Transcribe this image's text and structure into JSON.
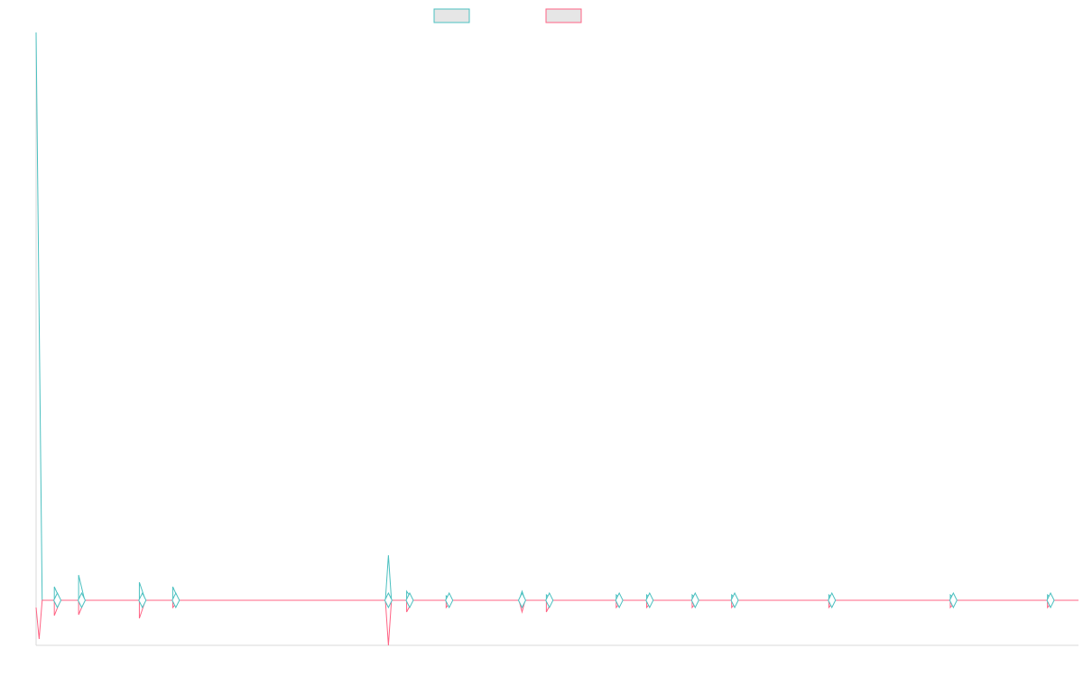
{
  "chart_data": {
    "type": "line",
    "title": "",
    "xlabel": "",
    "ylabel": "",
    "legend_position": "top-center",
    "grid": false,
    "x_range": [
      0,
      171.6
    ],
    "ylim": [
      -50,
      630
    ],
    "series": [
      {
        "color": "#4bc0c0",
        "points": [
          [
            0,
            630
          ],
          [
            1,
            0
          ],
          [
            3,
            0
          ],
          [
            3,
            15
          ],
          [
            4,
            0
          ],
          [
            7,
            0
          ],
          [
            7,
            28
          ],
          [
            8,
            0
          ],
          [
            17,
            0
          ],
          [
            17,
            20
          ],
          [
            18,
            0
          ],
          [
            22.5,
            0
          ],
          [
            22.5,
            15
          ],
          [
            23.5,
            0
          ],
          [
            57.5,
            0
          ],
          [
            58,
            50
          ],
          [
            58.5,
            0
          ],
          [
            61,
            0
          ],
          [
            61,
            10
          ],
          [
            62,
            0
          ],
          [
            67.5,
            0
          ],
          [
            67.5,
            5
          ],
          [
            68.5,
            0
          ],
          [
            79.5,
            0
          ],
          [
            80,
            10
          ],
          [
            80.5,
            0
          ],
          [
            84,
            0
          ],
          [
            84,
            6
          ],
          [
            85,
            0
          ],
          [
            95.5,
            0
          ],
          [
            95.5,
            6
          ],
          [
            96.5,
            0
          ],
          [
            100.5,
            0
          ],
          [
            100.5,
            6
          ],
          [
            101.5,
            0
          ],
          [
            108,
            0
          ],
          [
            108,
            6
          ],
          [
            109,
            0
          ],
          [
            114.5,
            0
          ],
          [
            114.5,
            6
          ],
          [
            115.5,
            0
          ],
          [
            130.5,
            0
          ],
          [
            130.5,
            6
          ],
          [
            131.5,
            0
          ],
          [
            150.5,
            0
          ],
          [
            150.5,
            6
          ],
          [
            151.5,
            0
          ],
          [
            166.5,
            0
          ],
          [
            166.5,
            6
          ],
          [
            167.5,
            0
          ],
          [
            171.6,
            0
          ]
        ]
      },
      {
        "color": "#ff6384",
        "points": [
          [
            0,
            -8
          ],
          [
            0.5,
            -43
          ],
          [
            1,
            0
          ],
          [
            3,
            0
          ],
          [
            3,
            -17
          ],
          [
            4,
            0
          ],
          [
            7,
            0
          ],
          [
            7,
            -16
          ],
          [
            8,
            0
          ],
          [
            17,
            0
          ],
          [
            17,
            -20
          ],
          [
            18,
            0
          ],
          [
            22.5,
            0
          ],
          [
            22.5,
            -8
          ],
          [
            23.5,
            0
          ],
          [
            57.5,
            0
          ],
          [
            58,
            -50
          ],
          [
            58.5,
            0
          ],
          [
            61,
            0
          ],
          [
            61,
            -13
          ],
          [
            62,
            0
          ],
          [
            67.5,
            0
          ],
          [
            67.5,
            -8
          ],
          [
            68.5,
            0
          ],
          [
            79.5,
            0
          ],
          [
            80,
            -13
          ],
          [
            80.5,
            0
          ],
          [
            84,
            0
          ],
          [
            84,
            -13
          ],
          [
            85,
            0
          ],
          [
            95.5,
            0
          ],
          [
            95.5,
            -8
          ],
          [
            96.5,
            0
          ],
          [
            100.5,
            0
          ],
          [
            100.5,
            -8
          ],
          [
            101.5,
            0
          ],
          [
            108,
            0
          ],
          [
            108,
            -8
          ],
          [
            109,
            0
          ],
          [
            114.5,
            0
          ],
          [
            114.5,
            -8
          ],
          [
            115.5,
            0
          ],
          [
            130.5,
            0
          ],
          [
            130.5,
            -8
          ],
          [
            131.5,
            0
          ],
          [
            150.5,
            0
          ],
          [
            150.5,
            -8
          ],
          [
            151.5,
            0
          ],
          [
            166.5,
            0
          ],
          [
            166.5,
            -8
          ],
          [
            167.5,
            0
          ],
          [
            171.6,
            0
          ]
        ]
      }
    ],
    "marker_fill": "#ffffff",
    "legend_swatch_fill": "#e6e6e6"
  }
}
